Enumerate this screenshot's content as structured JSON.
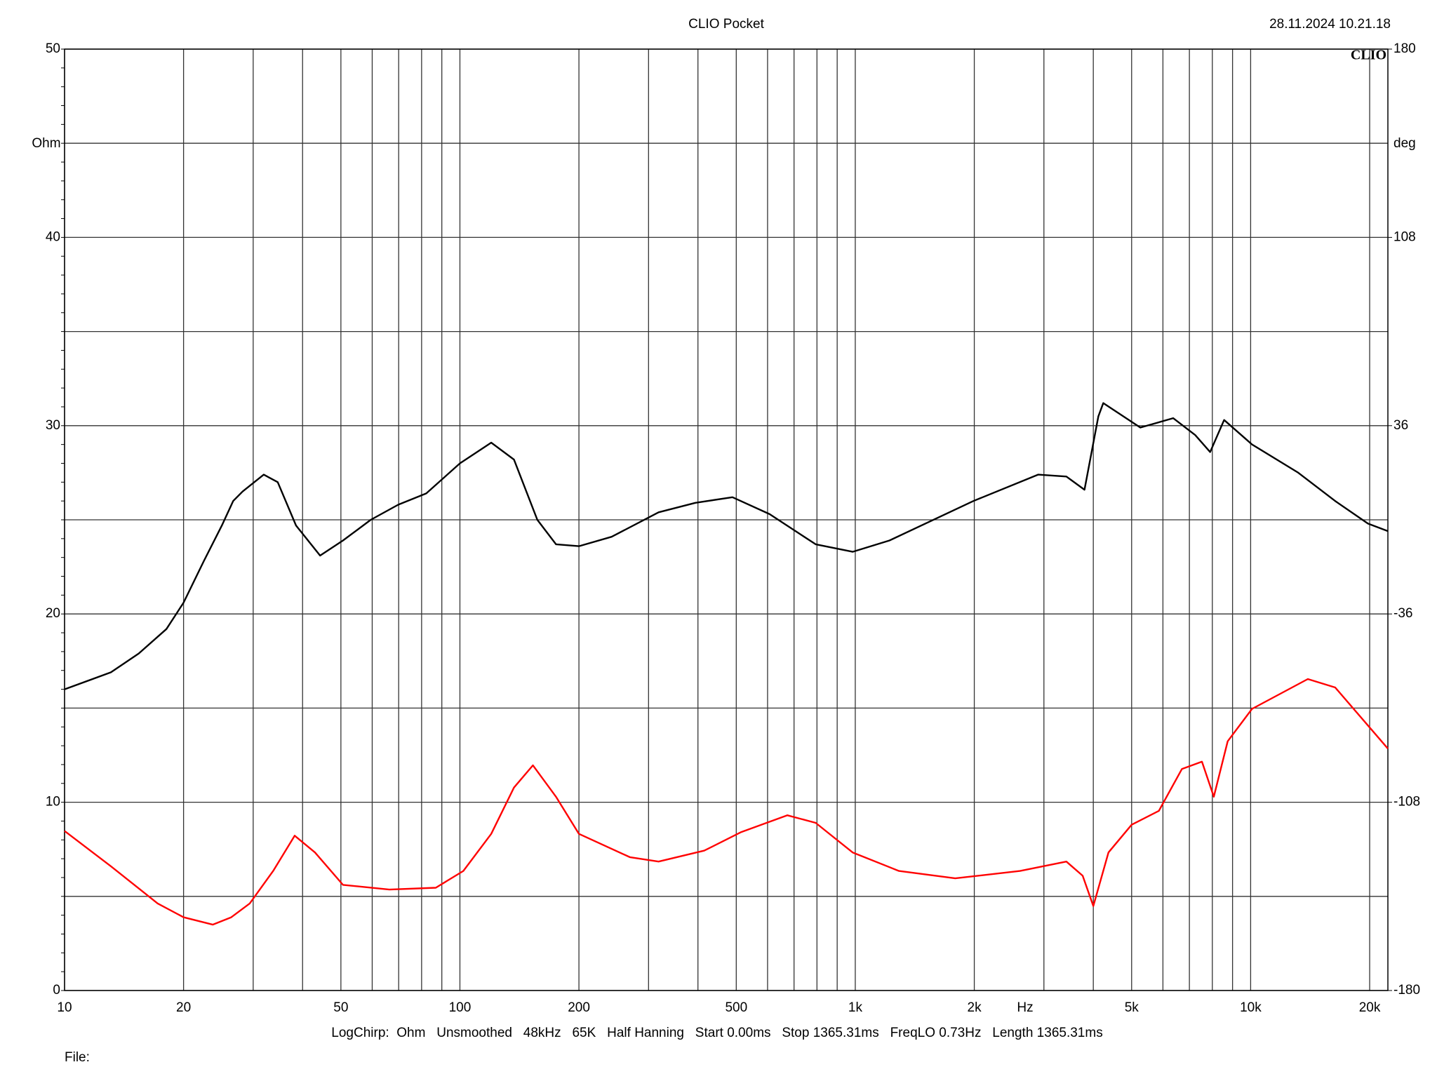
{
  "chart_data": {
    "type": "line",
    "title": "CLIO Pocket",
    "timestamp": "28.11.2024 10.21.18",
    "logo": "CLIO",
    "ylabel": "Ohm",
    "y2label": "deg",
    "xlabel": "Hz",
    "footer": "LogChirp:  Ohm   Unsmoothed   48kHz   65K   Half Hanning   Start 0.00ms   Stop 1365.31ms   FreqLO 0.73Hz   Length 1365.31ms",
    "file_label": "File:",
    "xscale": "log",
    "grid": true,
    "xlim": [
      10,
      22240
    ],
    "xticks": [
      10,
      20,
      50,
      100,
      200,
      500,
      {
        "value": 1000,
        "label": "1k"
      },
      {
        "value": 2000,
        "label": "2k"
      },
      {
        "value": 5000,
        "label": "5k"
      },
      {
        "value": 10000,
        "label": "10k"
      },
      {
        "value": 20000,
        "label": "20k"
      }
    ],
    "x_minor_ticks": [
      30,
      40,
      60,
      70,
      80,
      90,
      300,
      400,
      600,
      700,
      800,
      900,
      3000,
      4000,
      6000,
      7000,
      8000,
      9000
    ],
    "ylim": [
      0,
      50
    ],
    "yticks": [
      0,
      10,
      20,
      30,
      40,
      50
    ],
    "y_minor_ticks": [
      5,
      15,
      25,
      35,
      45
    ],
    "y2lim": [
      -180,
      180
    ],
    "y2ticks": [
      -180,
      -108,
      -36,
      36,
      108,
      180
    ],
    "series": [
      {
        "color": "#000000",
        "axis": "y",
        "x": [
          10,
          13.1,
          15.4,
          18.1,
          20,
          22.5,
          25,
          26.7,
          28.2,
          31.9,
          34.6,
          38.5,
          44.3,
          50.6,
          59.5,
          69.8,
          82.2,
          100,
          120,
          137,
          157,
          175,
          200,
          242,
          318,
          394,
          489,
          607,
          794,
          985,
          1220,
          1990,
          2900,
          3420,
          3800,
          4120,
          4240,
          5260,
          6370,
          7240,
          7900,
          8570,
          10080,
          13200,
          16360,
          19800,
          22240
        ],
        "values": [
          16.0,
          16.9,
          17.9,
          19.2,
          20.6,
          22.8,
          24.7,
          26.0,
          26.5,
          27.4,
          27.0,
          24.7,
          23.1,
          23.9,
          25.0,
          25.8,
          26.4,
          28.0,
          29.1,
          28.2,
          25.0,
          23.7,
          23.6,
          24.1,
          25.4,
          25.9,
          26.2,
          25.3,
          23.7,
          23.3,
          23.9,
          26.0,
          27.4,
          27.3,
          26.6,
          30.5,
          31.2,
          29.9,
          30.4,
          29.5,
          28.6,
          30.3,
          29.0,
          27.5,
          26.0,
          24.8,
          24.4
        ]
      },
      {
        "color": "#ff0000",
        "axis": "y2",
        "x": [
          10,
          13.1,
          17.2,
          20,
          23.7,
          26.4,
          29.4,
          33.7,
          38.2,
          43,
          50.6,
          66.3,
          86.9,
          102,
          120,
          137,
          153,
          175,
          200,
          269,
          318,
          415,
          515,
          673,
          794,
          985,
          1290,
          1790,
          2610,
          3420,
          3760,
          4000,
          4370,
          5000,
          5860,
          6700,
          7530,
          8070,
          8750,
          10080,
          13950,
          16360,
          22240
        ],
        "values": [
          -119,
          -132.5,
          -146.7,
          -152,
          -154.8,
          -152,
          -146.7,
          -134.3,
          -120.8,
          -127.2,
          -139.6,
          -141.4,
          -140.7,
          -134.3,
          -120.1,
          -102.4,
          -93.9,
          -105.9,
          -120.1,
          -129,
          -130.7,
          -126.5,
          -119.4,
          -113,
          -115.9,
          -127.2,
          -134.3,
          -137.1,
          -134.3,
          -130.7,
          -136.1,
          -147.7,
          -127.2,
          -116.6,
          -111.3,
          -95.3,
          -92.5,
          -105.9,
          -84.7,
          -72.3,
          -60.9,
          -64.1,
          -87.5
        ]
      }
    ]
  }
}
